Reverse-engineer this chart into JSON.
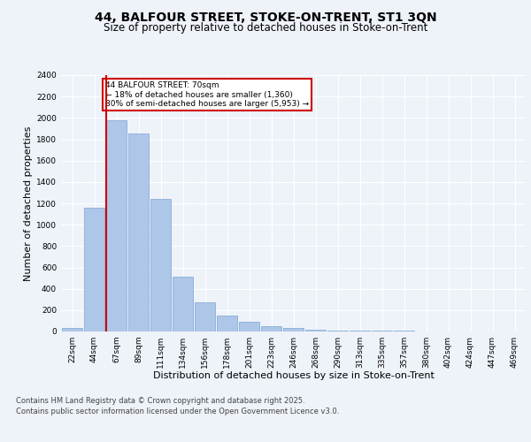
{
  "title1": "44, BALFOUR STREET, STOKE-ON-TRENT, ST1 3QN",
  "title2": "Size of property relative to detached houses in Stoke-on-Trent",
  "xlabel": "Distribution of detached houses by size in Stoke-on-Trent",
  "ylabel": "Number of detached properties",
  "categories": [
    "22sqm",
    "44sqm",
    "67sqm",
    "89sqm",
    "111sqm",
    "134sqm",
    "156sqm",
    "178sqm",
    "201sqm",
    "223sqm",
    "246sqm",
    "268sqm",
    "290sqm",
    "313sqm",
    "335sqm",
    "357sqm",
    "380sqm",
    "402sqm",
    "424sqm",
    "447sqm",
    "469sqm"
  ],
  "values": [
    30,
    1160,
    1980,
    1850,
    1240,
    510,
    270,
    150,
    95,
    50,
    35,
    15,
    10,
    8,
    5,
    5,
    3,
    2,
    2,
    1,
    1
  ],
  "bar_color": "#aec6e8",
  "bar_edge_color": "#6699cc",
  "highlight_index": 2,
  "annotation_box_text": "44 BALFOUR STREET: 70sqm\n← 18% of detached houses are smaller (1,360)\n80% of semi-detached houses are larger (5,953) →",
  "annotation_box_color": "#ffffff",
  "annotation_box_edge_color": "#cc0000",
  "vline_color": "#cc0000",
  "background_color": "#eef2f9",
  "grid_color": "#ffffff",
  "ylim": [
    0,
    2400
  ],
  "yticks": [
    0,
    200,
    400,
    600,
    800,
    1000,
    1200,
    1400,
    1600,
    1800,
    2000,
    2200,
    2400
  ],
  "footer_line1": "Contains HM Land Registry data © Crown copyright and database right 2025.",
  "footer_line2": "Contains public sector information licensed under the Open Government Licence v3.0.",
  "title_fontsize": 10,
  "subtitle_fontsize": 8.5,
  "xlabel_fontsize": 8,
  "ylabel_fontsize": 8,
  "tick_fontsize": 6.5,
  "annot_fontsize": 6.5,
  "footer_fontsize": 6
}
